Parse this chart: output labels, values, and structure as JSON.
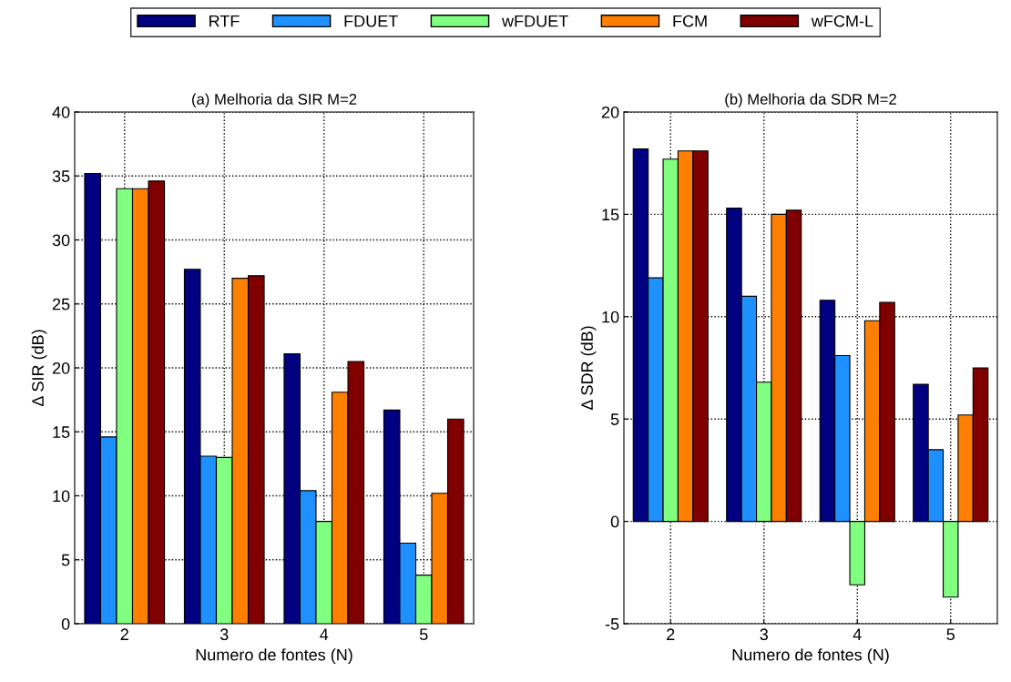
{
  "chart_data": [
    {
      "type": "bar",
      "title": "(a) Melhoria da SIR M=2",
      "xlabel": "Numero de fontes (N)",
      "ylabel": "Δ SIR (dB)",
      "categories": [
        "2",
        "3",
        "4",
        "5"
      ],
      "ylim": [
        0,
        40
      ],
      "yticks": [
        0,
        5,
        10,
        15,
        20,
        25,
        30,
        35,
        40
      ],
      "grid": true,
      "legend": "top",
      "series": [
        {
          "name": "RTF",
          "color": "#000080",
          "values": [
            35.2,
            27.7,
            21.1,
            16.7
          ]
        },
        {
          "name": "FDUET",
          "color": "#1e90ff",
          "values": [
            14.6,
            13.1,
            10.4,
            6.3
          ]
        },
        {
          "name": "wFDUET",
          "color": "#80ff80",
          "values": [
            34.0,
            13.0,
            8.0,
            3.8
          ]
        },
        {
          "name": "FCM",
          "color": "#ff7f00",
          "values": [
            34.0,
            27.0,
            18.1,
            10.2
          ]
        },
        {
          "name": "wFCM-L",
          "color": "#800000",
          "values": [
            34.6,
            27.2,
            20.5,
            16.0
          ]
        }
      ]
    },
    {
      "type": "bar",
      "title": "(b) Melhoria da SDR M=2",
      "xlabel": "Numero de fontes (N)",
      "ylabel": "Δ SDR (dB)",
      "categories": [
        "2",
        "3",
        "4",
        "5"
      ],
      "ylim": [
        -5,
        20
      ],
      "yticks": [
        {
          "value": -5,
          "label": "-5"
        },
        0,
        5,
        10,
        15,
        20
      ],
      "grid": true,
      "series": [
        {
          "color": "#000080",
          "values": [
            18.2,
            15.3,
            10.8,
            6.7
          ]
        },
        {
          "color": "#1e90ff",
          "values": [
            11.9,
            11.0,
            8.1,
            3.5
          ]
        },
        {
          "color": "#80ff80",
          "values": [
            17.7,
            6.8,
            -3.1,
            -3.7
          ]
        },
        {
          "color": "#ff7f00",
          "values": [
            18.1,
            15.0,
            9.8,
            5.2
          ]
        },
        {
          "color": "#800000",
          "values": [
            18.1,
            15.2,
            10.7,
            7.5
          ]
        }
      ]
    }
  ]
}
